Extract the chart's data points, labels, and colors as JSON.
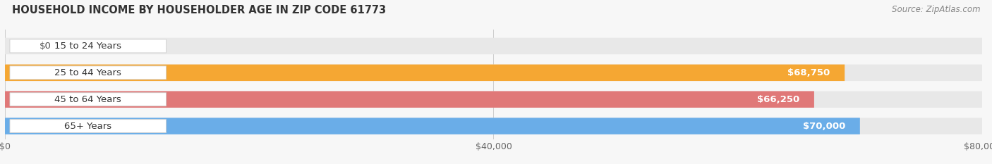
{
  "title": "HOUSEHOLD INCOME BY HOUSEHOLDER AGE IN ZIP CODE 61773",
  "source": "Source: ZipAtlas.com",
  "categories": [
    "15 to 24 Years",
    "25 to 44 Years",
    "45 to 64 Years",
    "65+ Years"
  ],
  "values": [
    0,
    68750,
    66250,
    70000
  ],
  "bar_colors": [
    "#f4a0bc",
    "#f5a733",
    "#e07878",
    "#6aade8"
  ],
  "bar_bg_color": "#e8e8e8",
  "xlim": [
    0,
    80000
  ],
  "xticklabels": [
    "$0",
    "$40,000",
    "$80,000"
  ],
  "xtick_values": [
    0,
    40000,
    80000
  ],
  "value_labels": [
    "$0",
    "$68,750",
    "$66,250",
    "$70,000"
  ],
  "background_color": "#f7f7f7",
  "title_fontsize": 10.5,
  "source_fontsize": 8.5,
  "label_fontsize": 9.5,
  "value_fontsize": 9.5,
  "tick_fontsize": 9
}
